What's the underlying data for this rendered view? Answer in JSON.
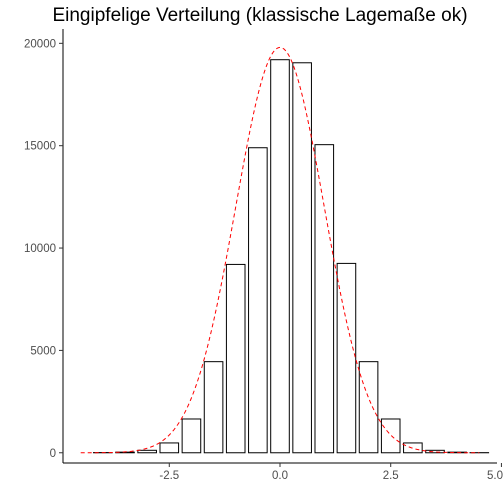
{
  "chart_data": {
    "type": "bar",
    "title": "Eingipfelige Verteilung (klassische Lagemaße ok)",
    "xlabel": "",
    "ylabel": "",
    "x_ticks": [
      -2.5,
      0.0,
      2.5,
      5.0
    ],
    "x_tick_labels": [
      "-2.5",
      "0.0",
      "2.5",
      "5.0"
    ],
    "y_ticks": [
      0,
      5000,
      10000,
      15000,
      20000
    ],
    "y_tick_labels": [
      "0",
      "5000",
      "10000",
      "15000",
      "20000"
    ],
    "xlim": [
      -4.9,
      4.9
    ],
    "ylim": [
      -500,
      20700
    ],
    "bin_width": 0.5,
    "bins": [
      {
        "center": -4.5,
        "count": 0
      },
      {
        "center": -4.0,
        "count": 10
      },
      {
        "center": -3.5,
        "count": 30
      },
      {
        "center": -3.0,
        "count": 120
      },
      {
        "center": -2.5,
        "count": 480
      },
      {
        "center": -2.0,
        "count": 1650
      },
      {
        "center": -1.5,
        "count": 4450
      },
      {
        "center": -1.0,
        "count": 9200
      },
      {
        "center": -0.5,
        "count": 14900
      },
      {
        "center": 0.0,
        "count": 19200
      },
      {
        "center": 0.5,
        "count": 19050
      },
      {
        "center": 1.0,
        "count": 15050
      },
      {
        "center": 1.5,
        "count": 9250
      },
      {
        "center": 2.0,
        "count": 4450
      },
      {
        "center": 2.5,
        "count": 1650
      },
      {
        "center": 3.0,
        "count": 480
      },
      {
        "center": 3.5,
        "count": 120
      },
      {
        "center": 4.0,
        "count": 30
      },
      {
        "center": 4.5,
        "count": 5
      }
    ],
    "density_curve": {
      "type": "normal",
      "mean": 0.0,
      "sd": 1.0,
      "peak": 19800,
      "x_range": [
        -4.5,
        4.5
      ],
      "color": "#ff0000",
      "style": "dashed"
    },
    "bar_fill": "#ffffff",
    "bar_outline": "#000000",
    "grid": false,
    "legend": "none"
  }
}
